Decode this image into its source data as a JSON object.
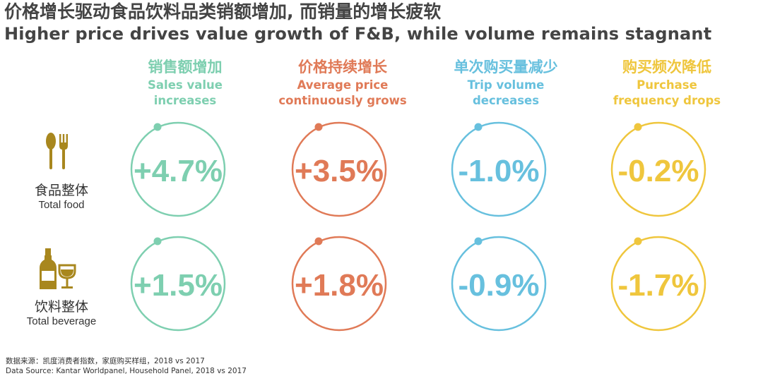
{
  "title": {
    "cn": "价格增长驱动食品饮料品类销额增加, 而销量的增长疲软",
    "en": "Higher price drives value growth of F&B, while volume remains stagnant"
  },
  "colors": {
    "green": "#7ecfb0",
    "orange": "#e07a57",
    "blue": "#67c0de",
    "yellow": "#efc63d",
    "icon": "#a8871e"
  },
  "chart_data": {
    "type": "table",
    "columns": [
      {
        "cn": "销售额增加",
        "en_line1": "Sales value",
        "en_line2": "increases",
        "color": "#7ecfb0"
      },
      {
        "cn": "价格持续增长",
        "en_line1": "Average price",
        "en_line2": "continuously grows",
        "color": "#e07a57"
      },
      {
        "cn": "单次购买量减少",
        "en_line1": "Trip volume",
        "en_line2": "decreases",
        "color": "#67c0de"
      },
      {
        "cn": "购买频次降低",
        "en_line1": "Purchase",
        "en_line2": "frequency drops",
        "color": "#efc63d"
      }
    ],
    "rows": [
      {
        "cn": "食品整体",
        "en": "Total food",
        "icon": "fork-spoon-icon",
        "values": [
          "+4.7%",
          "+3.5%",
          "-1.0%",
          "-0.2%"
        ]
      },
      {
        "cn": "饮料整体",
        "en": "Total beverage",
        "icon": "bottle-glass-icon",
        "values": [
          "+1.5%",
          "+1.8%",
          "-0.9%",
          "-1.7%"
        ]
      }
    ]
  },
  "footer": {
    "cn": "数据来源：凯度消费者指数，家庭购买样组，2018 vs 2017",
    "en": "Data Source: Kantar Worldpanel, Household Panel, 2018 vs 2017"
  }
}
